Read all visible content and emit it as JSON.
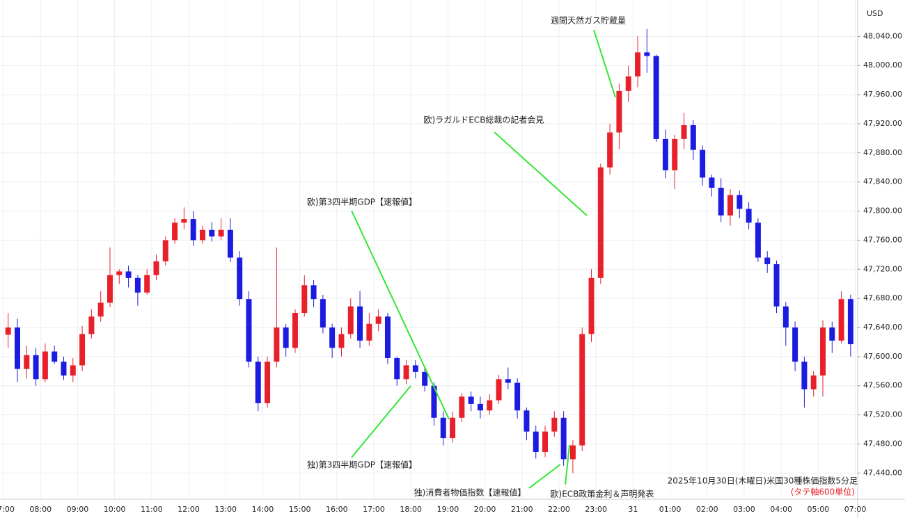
{
  "chart_data": {
    "type": "candlestick",
    "currency": "USD",
    "caption": "2025年10月30日(木曜日)米国30種株価指数5分足",
    "caption_note": "(タテ軸600単位)",
    "up_color": "#e8202a",
    "down_color": "#1c1ce0",
    "grid": true,
    "annotations": [
      "週間天然ガス貯蔵量",
      "欧)ラガルドECB総裁の記者会見",
      "欧)第3四半期GDP【速報値】",
      "独)第3四半期GDP【速報値】",
      "独)消費者物価指数【速報値】",
      "欧)ECB政策金利＆声明発表"
    ],
    "xlim": [
      -0.38,
      92.26
    ],
    "xticks": [
      {
        "value": 0,
        "label": "07:00"
      },
      {
        "value": 4,
        "label": "08:00"
      },
      {
        "value": 8,
        "label": "09:00"
      },
      {
        "value": 12,
        "label": "10:00"
      },
      {
        "value": 16,
        "label": "11:00"
      },
      {
        "value": 20,
        "label": "12:00"
      },
      {
        "value": 24,
        "label": "13:00"
      },
      {
        "value": 28,
        "label": "14:00"
      },
      {
        "value": 32,
        "label": "15:00"
      },
      {
        "value": 36,
        "label": "16:00"
      },
      {
        "value": 40,
        "label": "17:00"
      },
      {
        "value": 44,
        "label": "18:00"
      },
      {
        "value": 48,
        "label": "19:00"
      },
      {
        "value": 52,
        "label": "20:00"
      },
      {
        "value": 56,
        "label": "21:00"
      },
      {
        "value": 60,
        "label": "22:00"
      },
      {
        "value": 64,
        "label": "23:00"
      },
      {
        "value": 68,
        "label": "31"
      },
      {
        "value": 72,
        "label": "01:00"
      },
      {
        "value": 76,
        "label": "02:00"
      },
      {
        "value": 80,
        "label": "03:00"
      },
      {
        "value": 84,
        "label": "04:00"
      },
      {
        "value": 88,
        "label": "05:00"
      },
      {
        "value": 92,
        "label": "07:00"
      }
    ],
    "ylim": [
      47404,
      48090
    ],
    "yticks": [
      {
        "value": 47440,
        "label": "47,440.00"
      },
      {
        "value": 47480,
        "label": "47,480.00"
      },
      {
        "value": 47520,
        "label": "47,520.00"
      },
      {
        "value": 47560,
        "label": "47,560.00"
      },
      {
        "value": 47600,
        "label": "47,600.00"
      },
      {
        "value": 47640,
        "label": "47,640.00"
      },
      {
        "value": 47680,
        "label": "47,680.00"
      },
      {
        "value": 47720,
        "label": "47,720.00"
      },
      {
        "value": 47760,
        "label": "47,760.00"
      },
      {
        "value": 47800,
        "label": "47,800.00"
      },
      {
        "value": 47840,
        "label": "47,840.00"
      },
      {
        "value": 47880,
        "label": "47,880.00"
      },
      {
        "value": 47920,
        "label": "47,920.00"
      },
      {
        "value": 47960,
        "label": "47,960.00"
      },
      {
        "value": 48000,
        "label": "48,000.00"
      },
      {
        "value": 48040,
        "label": "48,040.00"
      }
    ],
    "open": [
      47630,
      47640,
      47583,
      47602,
      47569,
      47607,
      47593,
      47574,
      47588,
      47631,
      47655,
      47674,
      47712,
      47717,
      47708,
      47688,
      47712,
      47731,
      47760,
      47784,
      47789,
      47760,
      47774,
      47765,
      47774,
      47736,
      47679,
      47593,
      47536,
      47593,
      47640,
      47612,
      47660,
      47698,
      47679,
      47640,
      47612,
      47631,
      47669,
      47622,
      47645,
      47655,
      47598,
      47569,
      47588,
      47579,
      47560,
      47516,
      47488,
      47516,
      47545,
      47535,
      47526,
      47540,
      47569,
      47564,
      47526,
      47497,
      47469,
      47497,
      47516,
      47459,
      47478,
      47631,
      47708,
      47860,
      47908,
      47965,
      47985,
      48018,
      48013,
      47899,
      47856,
      47899,
      47918,
      47884,
      47846,
      47832,
      47794,
      47822,
      47803,
      47784,
      47736,
      47727,
      47669,
      47640,
      47593,
      47555,
      47574,
      47640,
      47622,
      47679
    ],
    "high": [
      47660,
      47652,
      47615,
      47612,
      47618,
      47615,
      47600,
      47598,
      47642,
      47665,
      47690,
      47750,
      47720,
      47725,
      47712,
      47720,
      47740,
      47765,
      47790,
      47805,
      47800,
      47780,
      47785,
      47790,
      47790,
      47745,
      47690,
      47600,
      47600,
      47750,
      47645,
      47665,
      47712,
      47705,
      47685,
      47645,
      47640,
      47680,
      47690,
      47660,
      47665,
      47660,
      47600,
      47595,
      47595,
      47585,
      47565,
      47525,
      47525,
      47550,
      47552,
      47545,
      47548,
      47575,
      47585,
      47570,
      47530,
      47505,
      47505,
      47525,
      47525,
      47485,
      47640,
      47720,
      47865,
      47920,
      47975,
      48000,
      48040,
      48050,
      48015,
      47912,
      47905,
      47935,
      47925,
      47890,
      47850,
      47845,
      47830,
      47828,
      47812,
      47790,
      47745,
      47732,
      47675,
      47648,
      47600,
      47580,
      47650,
      47648,
      47690,
      47685
    ],
    "low": [
      47612,
      47565,
      47570,
      47560,
      47565,
      47590,
      47568,
      47565,
      47580,
      47625,
      47648,
      47668,
      47700,
      47695,
      47670,
      47685,
      47705,
      47725,
      47755,
      47775,
      47752,
      47755,
      47758,
      47760,
      47730,
      47670,
      47585,
      47525,
      47530,
      47585,
      47600,
      47605,
      47655,
      47668,
      47632,
      47598,
      47600,
      47625,
      47612,
      47615,
      47635,
      47590,
      47560,
      47562,
      47570,
      47552,
      47505,
      47478,
      47482,
      47510,
      47525,
      47515,
      47520,
      47535,
      47555,
      47515,
      47485,
      47460,
      47462,
      47490,
      47450,
      47440,
      47470,
      47620,
      47700,
      47850,
      47885,
      47950,
      47970,
      47990,
      47895,
      47845,
      47830,
      47885,
      47870,
      47835,
      47820,
      47785,
      47780,
      47790,
      47775,
      47730,
      47715,
      47660,
      47615,
      47580,
      47530,
      47545,
      47545,
      47605,
      47618,
      47600
    ],
    "close": [
      47640,
      47583,
      47602,
      47569,
      47607,
      47593,
      47574,
      47588,
      47631,
      47655,
      47674,
      47712,
      47717,
      47708,
      47688,
      47712,
      47731,
      47760,
      47784,
      47789,
      47760,
      47774,
      47765,
      47774,
      47736,
      47679,
      47593,
      47536,
      47593,
      47640,
      47612,
      47660,
      47698,
      47679,
      47640,
      47612,
      47631,
      47669,
      47622,
      47645,
      47655,
      47598,
      47569,
      47588,
      47579,
      47560,
      47516,
      47488,
      47516,
      47545,
      47535,
      47526,
      47540,
      47569,
      47564,
      47526,
      47497,
      47469,
      47497,
      47516,
      47459,
      47478,
      47631,
      47708,
      47860,
      47908,
      47965,
      47985,
      48018,
      48013,
      47899,
      47856,
      47899,
      47918,
      47884,
      47846,
      47832,
      47794,
      47822,
      47803,
      47784,
      47736,
      47727,
      47669,
      47640,
      47593,
      47555,
      47574,
      47640,
      47622,
      47679,
      47617
    ]
  }
}
